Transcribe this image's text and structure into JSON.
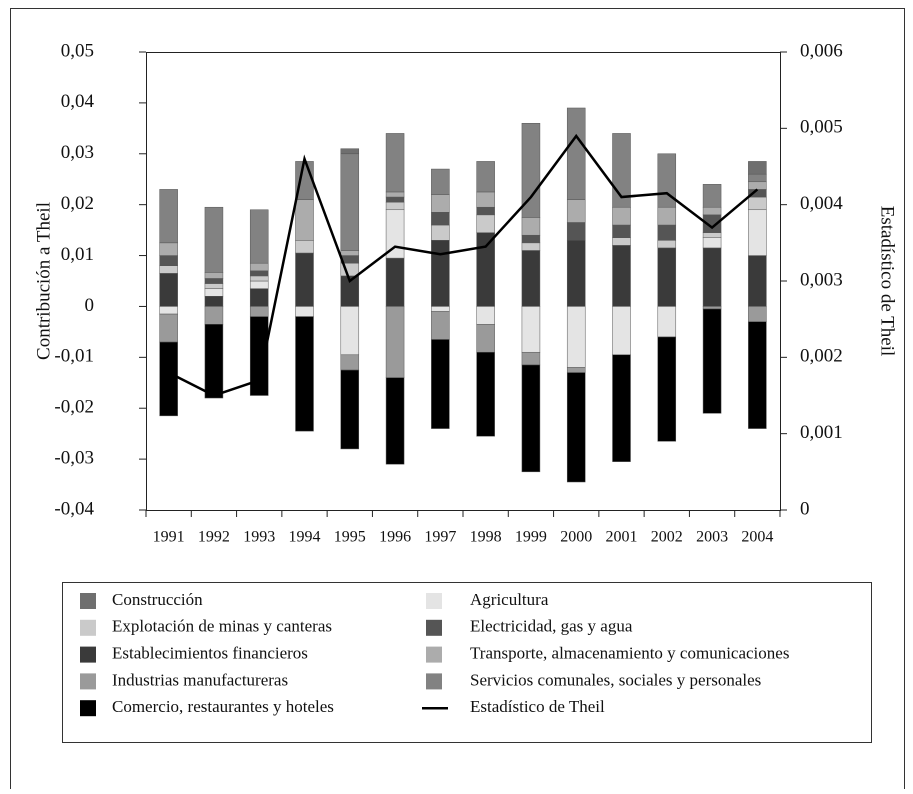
{
  "chart_data": {
    "type": "bar",
    "ylabel": "Contribución a Theil",
    "y2label": "Estadístico de Theil",
    "categories": [
      "1991",
      "1992",
      "1993",
      "1994",
      "1995",
      "1996",
      "1997",
      "1998",
      "1999",
      "2000",
      "2001",
      "2002",
      "2003",
      "2004"
    ],
    "series": [
      {
        "name": "Construcción",
        "color": "#6f6f6f",
        "values": [
          0,
          0,
          0,
          0,
          0.001,
          0,
          0,
          0,
          0,
          0,
          0,
          0,
          0,
          0.0025
        ]
      },
      {
        "name": "Agricultura",
        "color": "#e4e4e4",
        "values": [
          -0.0015,
          0.0015,
          0.0015,
          -0.002,
          -0.0095,
          0.0095,
          -0.001,
          -0.0035,
          -0.009,
          -0.012,
          -0.0095,
          -0.006,
          0.002,
          0.009
        ]
      },
      {
        "name": "Explotación de minas y canteras",
        "color": "#cacaca",
        "values": [
          0.0015,
          0.001,
          0.001,
          0.0025,
          0.0025,
          0.0015,
          0.003,
          0.0035,
          0.0015,
          0,
          0.0015,
          0.0015,
          0.001,
          0.0025
        ]
      },
      {
        "name": "Electricidad, gas y agua",
        "color": "#555555",
        "values": [
          0.002,
          0.001,
          0.001,
          0,
          0.0015,
          0.001,
          0.0025,
          0.0015,
          0.0015,
          0.0035,
          0.0025,
          0.003,
          0.0035,
          0.0015
        ]
      },
      {
        "name": "Establecimientos financieros",
        "color": "#3a3a3a",
        "values": [
          0.0065,
          0.002,
          0.0035,
          0.0105,
          0.006,
          0.0095,
          0.013,
          0.0145,
          0.011,
          0.013,
          0.012,
          0.0115,
          0.0115,
          0.01
        ]
      },
      {
        "name": "Transporte, almacenamiento y comunicaciones",
        "color": "#acacac",
        "values": [
          0.0025,
          0.0012,
          0.0015,
          0.008,
          0.001,
          0.001,
          0.0035,
          0.003,
          0.0035,
          0.0045,
          0.0035,
          0.0035,
          0.0015,
          0.0015
        ]
      },
      {
        "name": "Industrias manufactureras",
        "color": "#9a9a9a",
        "values": [
          -0.0055,
          -0.0035,
          -0.002,
          0,
          -0.003,
          -0.014,
          -0.0055,
          -0.0055,
          -0.0025,
          -0.001,
          0,
          0,
          -0.0005,
          -0.003
        ]
      },
      {
        "name": "Servicios comunales, sociales y personales",
        "color": "#828282",
        "values": [
          0.0105,
          0.0128,
          0.0105,
          0.0075,
          0.019,
          0.0115,
          0.005,
          0.006,
          0.0185,
          0.018,
          0.0145,
          0.0105,
          0.0045,
          0.0015
        ]
      },
      {
        "name": "Comercio, restaurantes y hoteles",
        "color": "#000000",
        "values": [
          -0.0145,
          -0.0145,
          -0.0155,
          -0.0225,
          -0.0155,
          -0.017,
          -0.0175,
          -0.0165,
          -0.021,
          -0.0215,
          -0.021,
          -0.0205,
          -0.0205,
          -0.021
        ]
      },
      {
        "name": "Estadístico de Theil",
        "color": "#000000",
        "type": "line",
        "axis": "y2",
        "values": [
          0.0018,
          0.0015,
          0.0017,
          0.0046,
          0.003,
          0.00345,
          0.00335,
          0.00345,
          0.0041,
          0.0049,
          0.0041,
          0.00415,
          0.0037,
          0.0042
        ]
      }
    ],
    "ylim": [
      -0.04,
      0.05
    ],
    "yticks": [
      {
        "value": -0.04,
        "label": "-0,04"
      },
      {
        "value": -0.03,
        "label": "-0,03"
      },
      {
        "value": -0.02,
        "label": "-0,02"
      },
      {
        "value": -0.01,
        "label": "-0,01"
      },
      0,
      {
        "value": 0.01,
        "label": "0,01"
      },
      {
        "value": 0.02,
        "label": "0,02"
      },
      {
        "value": 0.03,
        "label": "0,03"
      },
      {
        "value": 0.04,
        "label": "0,04"
      },
      {
        "value": 0.05,
        "label": "0,05"
      }
    ],
    "y2lim": [
      0,
      0.006
    ],
    "y2ticks": [
      0,
      {
        "value": 0.001,
        "label": "0,001"
      },
      {
        "value": 0.002,
        "label": "0,002"
      },
      {
        "value": 0.003,
        "label": "0,003"
      },
      {
        "value": 0.004,
        "label": "0,004"
      },
      {
        "value": 0.005,
        "label": "0,005"
      },
      {
        "value": 0.006,
        "label": "0,006"
      }
    ],
    "grid": false,
    "legend": "bottom"
  }
}
